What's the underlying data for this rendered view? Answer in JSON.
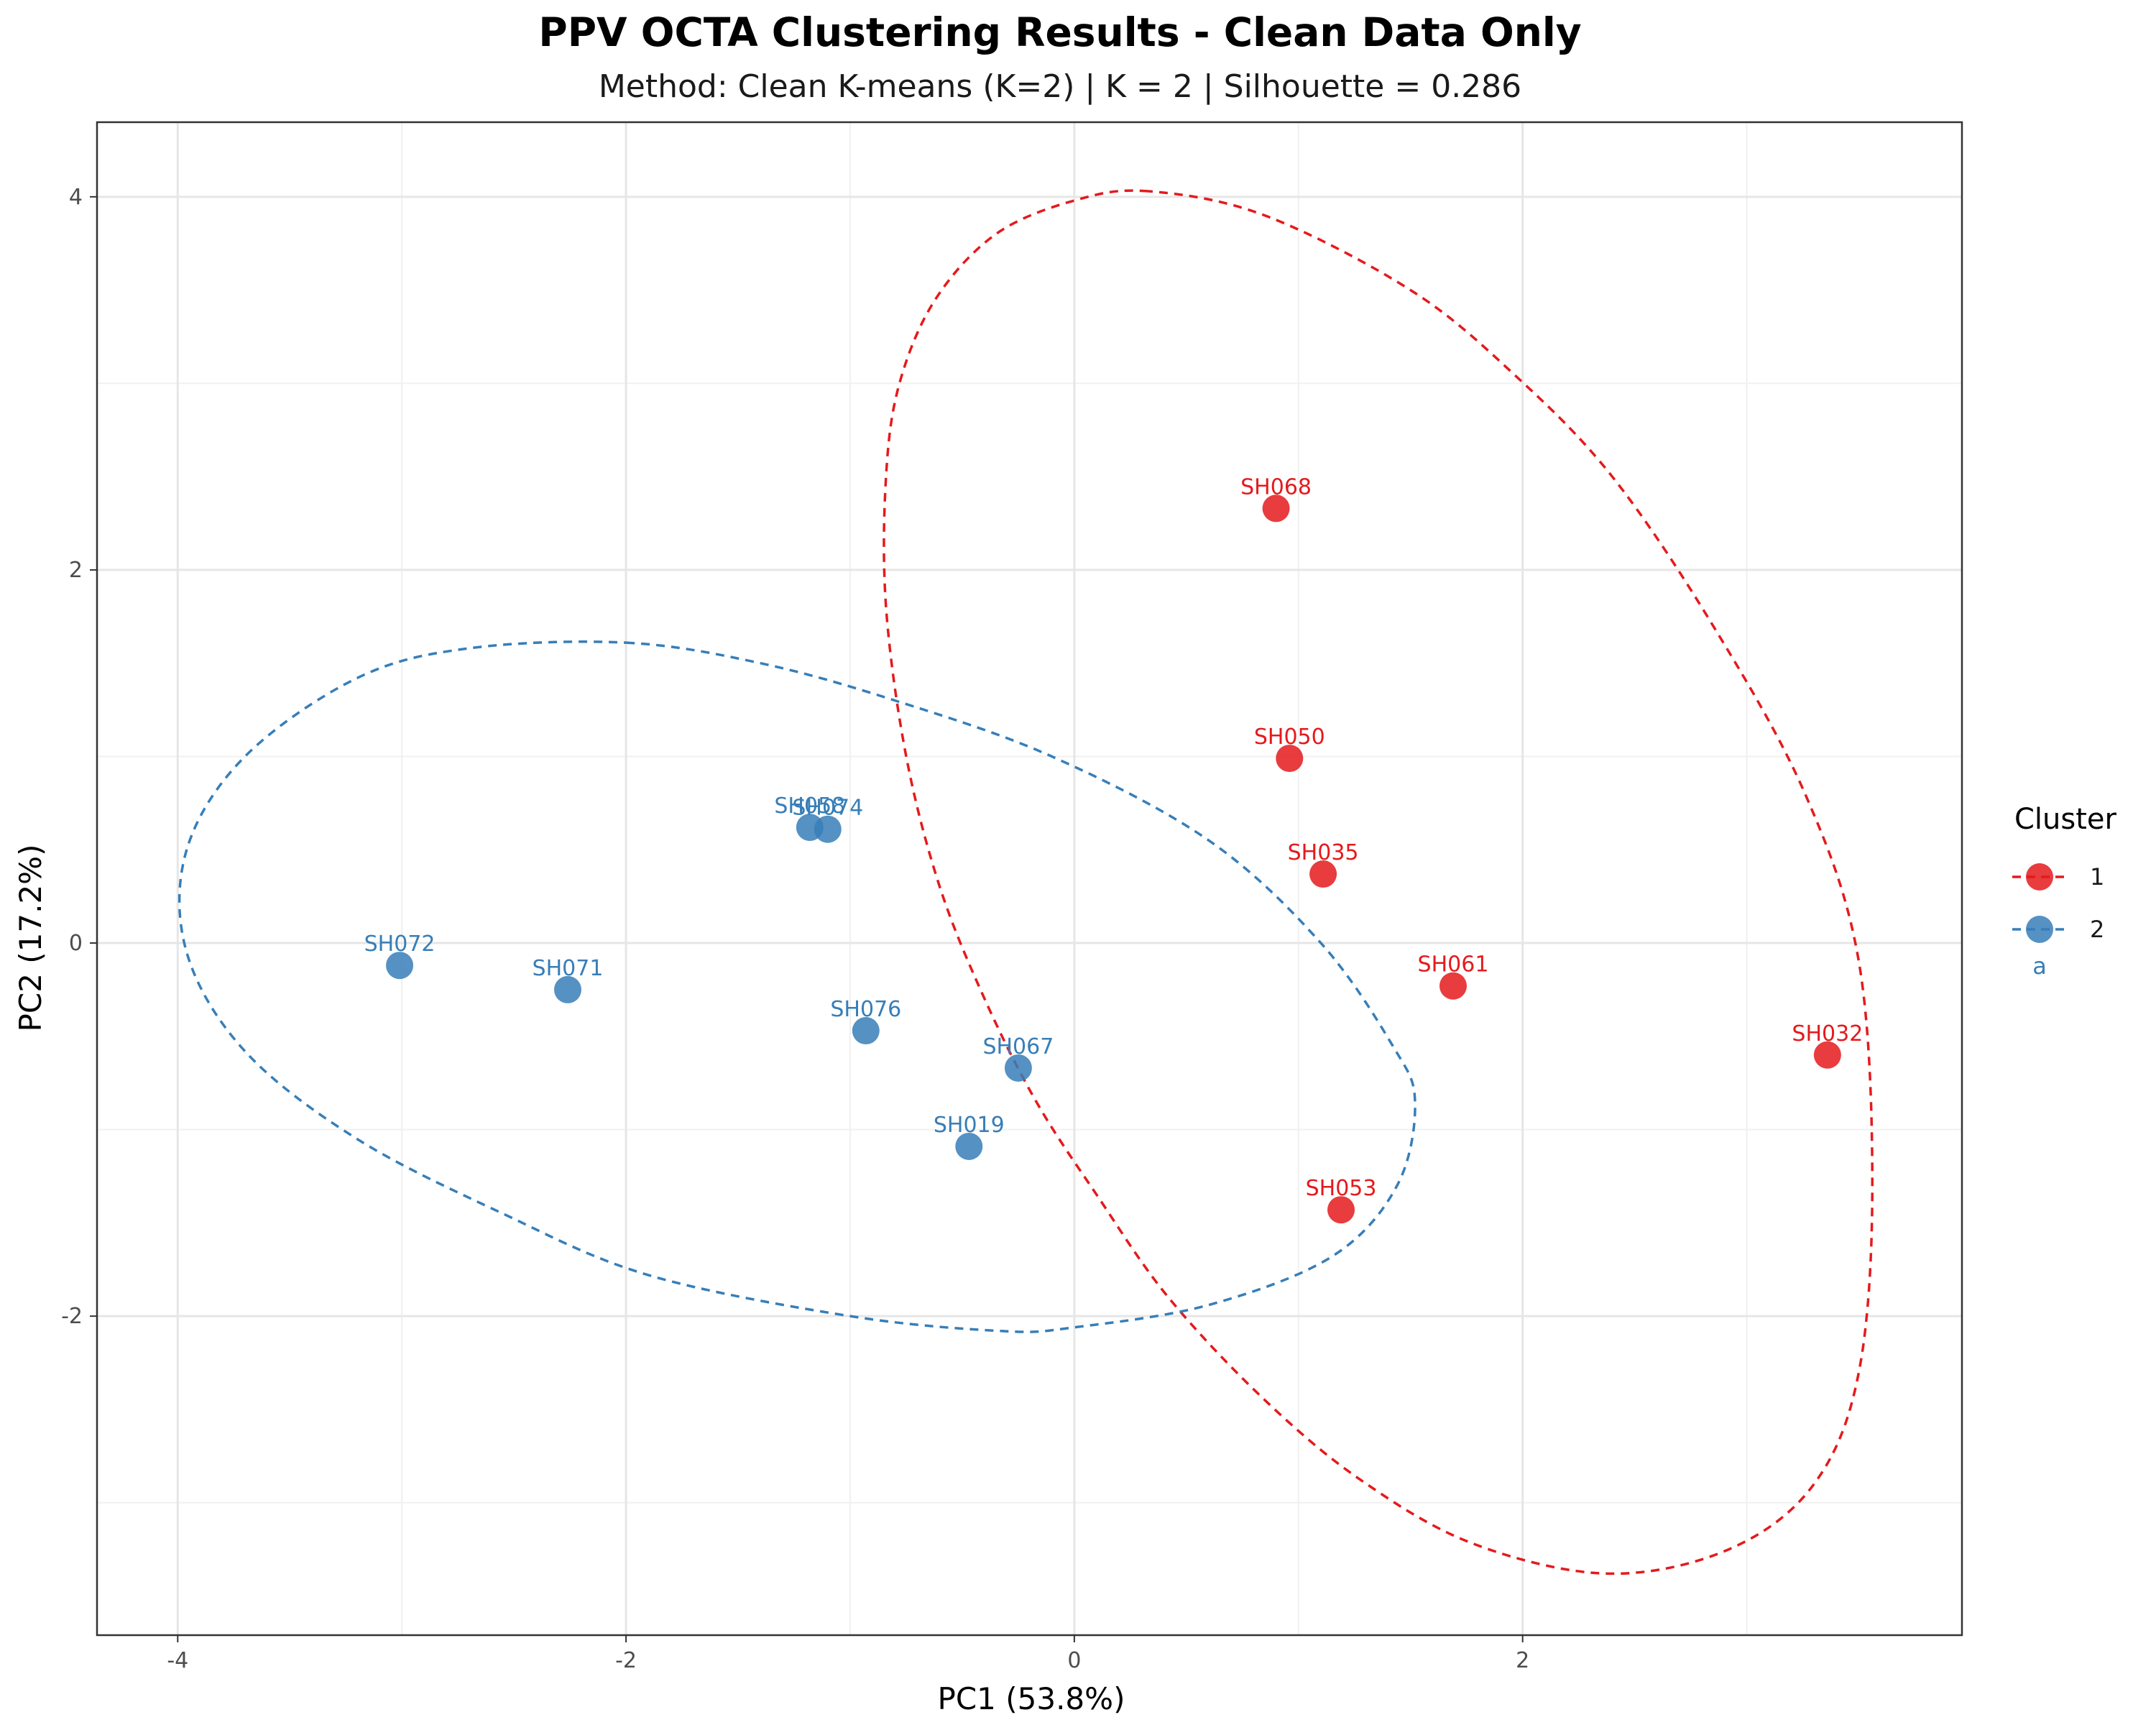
{
  "chart_data": {
    "type": "scatter",
    "title": "PPV OCTA Clustering Results - Clean Data Only",
    "subtitle": "Method: Clean K-means (K=2) | K = 2 | Silhouette = 0.286",
    "xlabel": "PC1 (53.8%)",
    "ylabel": "PC2 (17.2%)",
    "xlim": [
      -4.36,
      3.96
    ],
    "ylim": [
      -3.71,
      4.4
    ],
    "x_ticks": [
      -4,
      -2,
      0,
      2
    ],
    "y_ticks": [
      -2,
      0,
      2,
      4
    ],
    "x_tick_labels": [
      "-4",
      "-2",
      "0",
      "2"
    ],
    "y_tick_labels": [
      "-2",
      "0",
      "2",
      "4"
    ],
    "grid": true,
    "legend_position": "right",
    "legend_title": "Cluster",
    "legend_note": "a",
    "series": [
      {
        "name": "1",
        "color": "#E41A1C",
        "points": [
          {
            "label": "SH068",
            "x": 0.9,
            "y": 2.33
          },
          {
            "label": "SH050",
            "x": 0.96,
            "y": 0.99
          },
          {
            "label": "SH035",
            "x": 1.11,
            "y": 0.37
          },
          {
            "label": "SH061",
            "x": 1.69,
            "y": -0.23
          },
          {
            "label": "SH032",
            "x": 3.36,
            "y": -0.6
          },
          {
            "label": "SH053",
            "x": 1.19,
            "y": -1.43
          }
        ],
        "ellipse": [
          [
            0.33,
            4.03
          ],
          [
            0.0,
            3.98
          ],
          [
            -0.35,
            3.8
          ],
          [
            -0.62,
            3.45
          ],
          [
            -0.78,
            3.0
          ],
          [
            -0.84,
            2.5
          ],
          [
            -0.84,
            1.8
          ],
          [
            -0.75,
            1.0
          ],
          [
            -0.6,
            0.3
          ],
          [
            -0.4,
            -0.3
          ],
          [
            -0.17,
            -0.85
          ],
          [
            0.1,
            -1.35
          ],
          [
            0.42,
            -1.9
          ],
          [
            0.85,
            -2.45
          ],
          [
            1.28,
            -2.88
          ],
          [
            1.78,
            -3.22
          ],
          [
            2.38,
            -3.38
          ],
          [
            2.92,
            -3.25
          ],
          [
            3.3,
            -2.9
          ],
          [
            3.5,
            -2.3
          ],
          [
            3.56,
            -1.3
          ],
          [
            3.5,
            -0.1
          ],
          [
            3.26,
            0.8
          ],
          [
            2.85,
            1.7
          ],
          [
            2.4,
            2.5
          ],
          [
            1.96,
            3.05
          ],
          [
            1.5,
            3.5
          ],
          [
            0.85,
            3.9
          ],
          [
            0.33,
            4.03
          ]
        ]
      },
      {
        "name": "2",
        "color": "#377EB8",
        "points": [
          {
            "label": "SH058",
            "x": -1.18,
            "y": 0.62
          },
          {
            "label": "SH074",
            "x": -1.1,
            "y": 0.61
          },
          {
            "label": "SH072",
            "x": -3.01,
            "y": -0.12
          },
          {
            "label": "SH071",
            "x": -2.26,
            "y": -0.25
          },
          {
            "label": "SH076",
            "x": -0.93,
            "y": -0.47
          },
          {
            "label": "SH067",
            "x": -0.25,
            "y": -0.67
          },
          {
            "label": "SH019",
            "x": -0.47,
            "y": -1.09
          }
        ],
        "ellipse": [
          [
            -2.0,
            1.61
          ],
          [
            -1.4,
            1.5
          ],
          [
            -0.8,
            1.3
          ],
          [
            -0.1,
            1.0
          ],
          [
            0.6,
            0.55
          ],
          [
            1.1,
            0.0
          ],
          [
            1.42,
            -0.55
          ],
          [
            1.52,
            -0.85
          ],
          [
            1.44,
            -1.3
          ],
          [
            1.15,
            -1.68
          ],
          [
            0.6,
            -1.94
          ],
          [
            0.0,
            -2.06
          ],
          [
            -0.32,
            -2.08
          ],
          [
            -1.0,
            -2.0
          ],
          [
            -1.9,
            -1.78
          ],
          [
            -2.55,
            -1.45
          ],
          [
            -3.2,
            -1.05
          ],
          [
            -3.7,
            -0.58
          ],
          [
            -3.96,
            -0.05
          ],
          [
            -3.96,
            0.5
          ],
          [
            -3.7,
            1.0
          ],
          [
            -3.2,
            1.42
          ],
          [
            -2.7,
            1.58
          ],
          [
            -2.0,
            1.61
          ]
        ]
      }
    ]
  }
}
